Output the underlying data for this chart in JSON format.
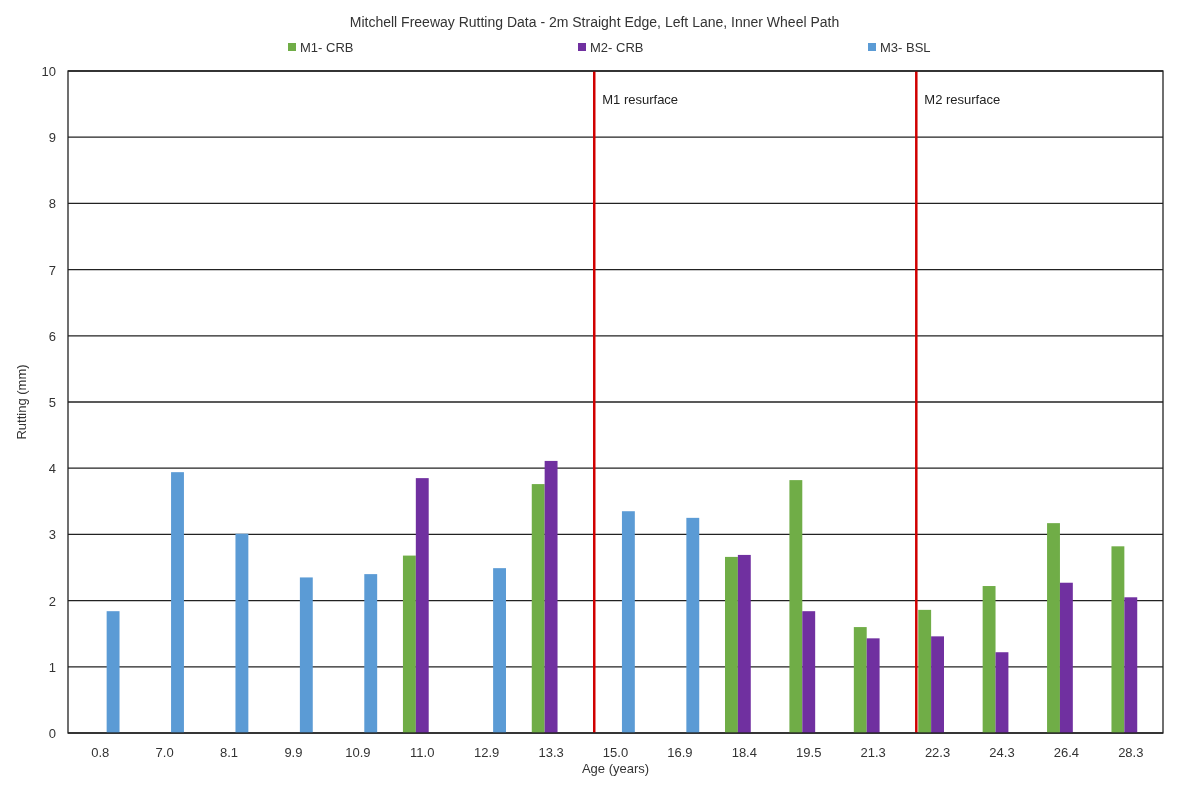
{
  "chart_data": {
    "type": "bar",
    "title": "Mitchell Freeway Rutting Data - 2m Straight Edge, Left Lane, Inner Wheel Path",
    "xlabel": "Age (years)",
    "ylabel": "Rutting (mm)",
    "categories": [
      "0.8",
      "7.0",
      "8.1",
      "9.9",
      "10.9",
      "11.0",
      "12.9",
      "13.3",
      "15.0",
      "16.9",
      "18.4",
      "19.5",
      "21.3",
      "22.3",
      "24.3",
      "26.4",
      "28.3"
    ],
    "series": [
      {
        "name": "M1- CRB",
        "color": "#70ad47",
        "values": [
          null,
          null,
          null,
          null,
          null,
          2.68,
          null,
          3.76,
          null,
          null,
          2.66,
          3.82,
          1.6,
          1.86,
          2.22,
          3.17,
          2.82
        ]
      },
      {
        "name": "M2- CRB",
        "color": "#7030a0",
        "values": [
          null,
          null,
          null,
          null,
          null,
          3.85,
          null,
          4.11,
          null,
          null,
          2.69,
          1.84,
          1.43,
          1.46,
          1.22,
          2.27,
          2.05
        ]
      },
      {
        "name": "M3- BSL",
        "color": "#5b9bd5",
        "values": [
          1.84,
          3.94,
          3.01,
          2.35,
          2.4,
          null,
          2.49,
          null,
          3.35,
          3.25,
          null,
          null,
          null,
          null,
          null,
          null,
          null
        ]
      }
    ],
    "ylim": [
      0,
      10
    ],
    "yticks": [
      0,
      1,
      2,
      3,
      4,
      5,
      6,
      7,
      8,
      9,
      10
    ],
    "grid": "y",
    "legend": "top",
    "ref_lines": [
      {
        "axis": "x",
        "value": "15.0",
        "label": "M1 resurface",
        "color": "#d00000"
      },
      {
        "axis": "x",
        "value": "22.3",
        "label": "M2 resurface",
        "color": "#d00000"
      }
    ]
  }
}
